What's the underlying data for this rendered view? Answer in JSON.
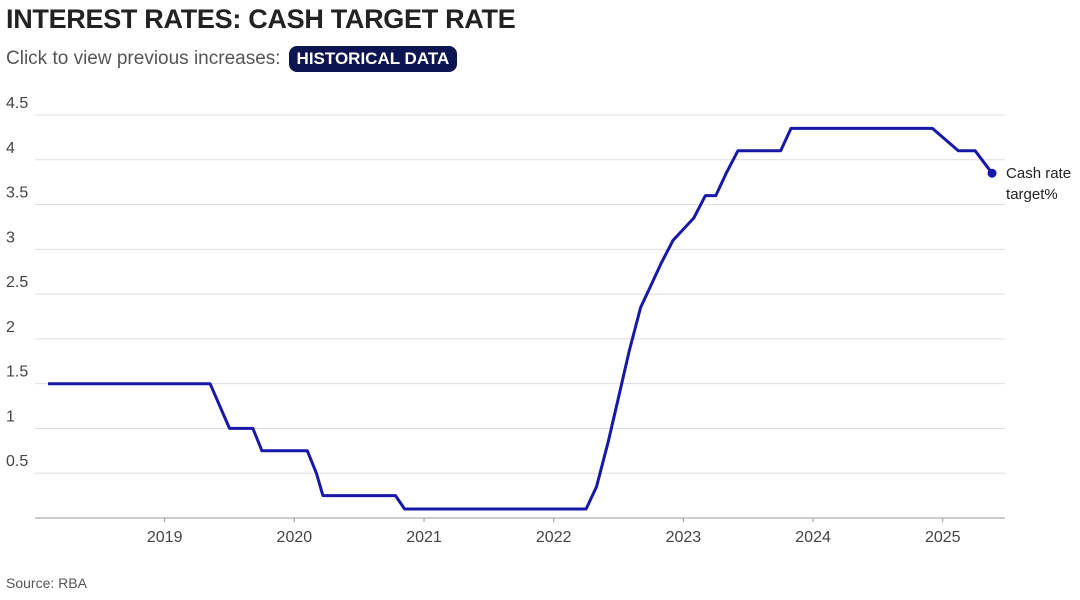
{
  "chart_data": {
    "type": "line",
    "title": "INTEREST RATES: CASH TARGET RATE",
    "subtitle": "Click to view previous increases:",
    "button_label": "HISTORICAL DATA",
    "source": "Source: RBA",
    "x": [
      2018.1,
      2019.35,
      2019.5,
      2019.68,
      2019.75,
      2020.1,
      2020.17,
      2020.22,
      2020.78,
      2020.85,
      2022.25,
      2022.33,
      2022.42,
      2022.5,
      2022.58,
      2022.67,
      2022.75,
      2022.83,
      2022.92,
      2023.08,
      2023.17,
      2023.25,
      2023.33,
      2023.42,
      2023.75,
      2023.83,
      2024.92,
      2025.12,
      2025.25,
      2025.38
    ],
    "series": [
      {
        "name": "Cash rate target%",
        "color": "#1818a8",
        "values": [
          1.5,
          1.5,
          1.0,
          1.0,
          0.75,
          0.75,
          0.5,
          0.25,
          0.25,
          0.1,
          0.1,
          0.35,
          0.85,
          1.35,
          1.85,
          2.35,
          2.6,
          2.85,
          3.1,
          3.35,
          3.6,
          3.6,
          3.85,
          4.1,
          4.1,
          4.35,
          4.35,
          4.1,
          4.1,
          3.85
        ]
      }
    ],
    "xlim": [
      2018,
      2025.48
    ],
    "xticks": [
      2019,
      2020,
      2021,
      2022,
      2023,
      2024,
      2025
    ],
    "ylim": [
      0,
      4.5
    ],
    "yticks": [
      0.5,
      1,
      1.5,
      2,
      2.5,
      3,
      3.5,
      4,
      4.5
    ],
    "grid": true
  }
}
